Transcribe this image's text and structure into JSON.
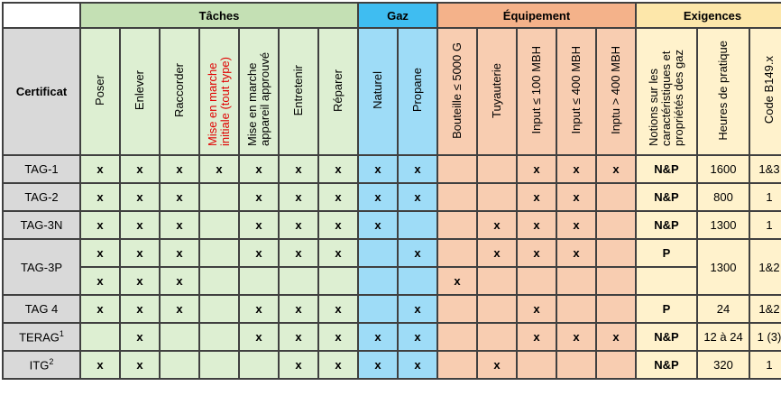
{
  "groups": {
    "taches": "Tâches",
    "gaz": "Gaz",
    "equipement": "Équipement",
    "exigences": "Exigences"
  },
  "columns": {
    "poser": "Poser",
    "enlever": "Enlever",
    "raccorder": "Raccorder",
    "mise_initiale": "Mise en marche initiale (tout type)",
    "mise_approuve": "Mise en marche appareil approuvé",
    "entretenir": "Entretenir",
    "reparer": "Réparer",
    "naturel": "Naturel",
    "propane": "Propane",
    "bouteille": "Bouteille ≤ 5000 G",
    "tuyauterie": "Tuyauterie",
    "input100": "Input ≤ 100 MBH",
    "input400": "Input ≤ 400 MBH",
    "inptu400": "Inptu > 400 MBH",
    "notions": "Notions sur les caractéristiques et propriétés des gaz",
    "heures": "Heures de pratique",
    "code": "Code B149.x"
  },
  "certificat_label": "Certificat",
  "mark": "x",
  "rows": {
    "tag1": {
      "name": "TAG-1",
      "notions": "N&P",
      "heures": "1600",
      "code": "1&3"
    },
    "tag2": {
      "name": "TAG-2",
      "notions": "N&P",
      "heures": "800",
      "code": "1"
    },
    "tag3n": {
      "name": "TAG-3N",
      "notions": "N&P",
      "heures": "1300",
      "code": "1"
    },
    "tag3p": {
      "name": "TAG-3P",
      "notions": "P",
      "heures": "1300",
      "code": "1&2"
    },
    "tag4": {
      "name": "TAG 4",
      "notions": "P",
      "heures": "24",
      "code": "1&2"
    },
    "terag": {
      "name": "TERAG",
      "sup": "1",
      "notions": "N&P",
      "heures": "12 à 24",
      "code": "1 (3)"
    },
    "itg": {
      "name": "ITG",
      "sup": "2",
      "notions": "N&P",
      "heures": "320",
      "code": "1"
    }
  },
  "colors": {
    "taches_header": "#c4e0b4",
    "taches_cell": "#ddefd2",
    "gaz_header": "#3fbdf1",
    "gaz_cell": "#9edcf7",
    "equip_header": "#f4b28a",
    "equip_cell": "#f8cdb1",
    "exig_header": "#fde7aa",
    "exig_cell": "#fff2cc",
    "certificat": "#d9d9d9"
  }
}
